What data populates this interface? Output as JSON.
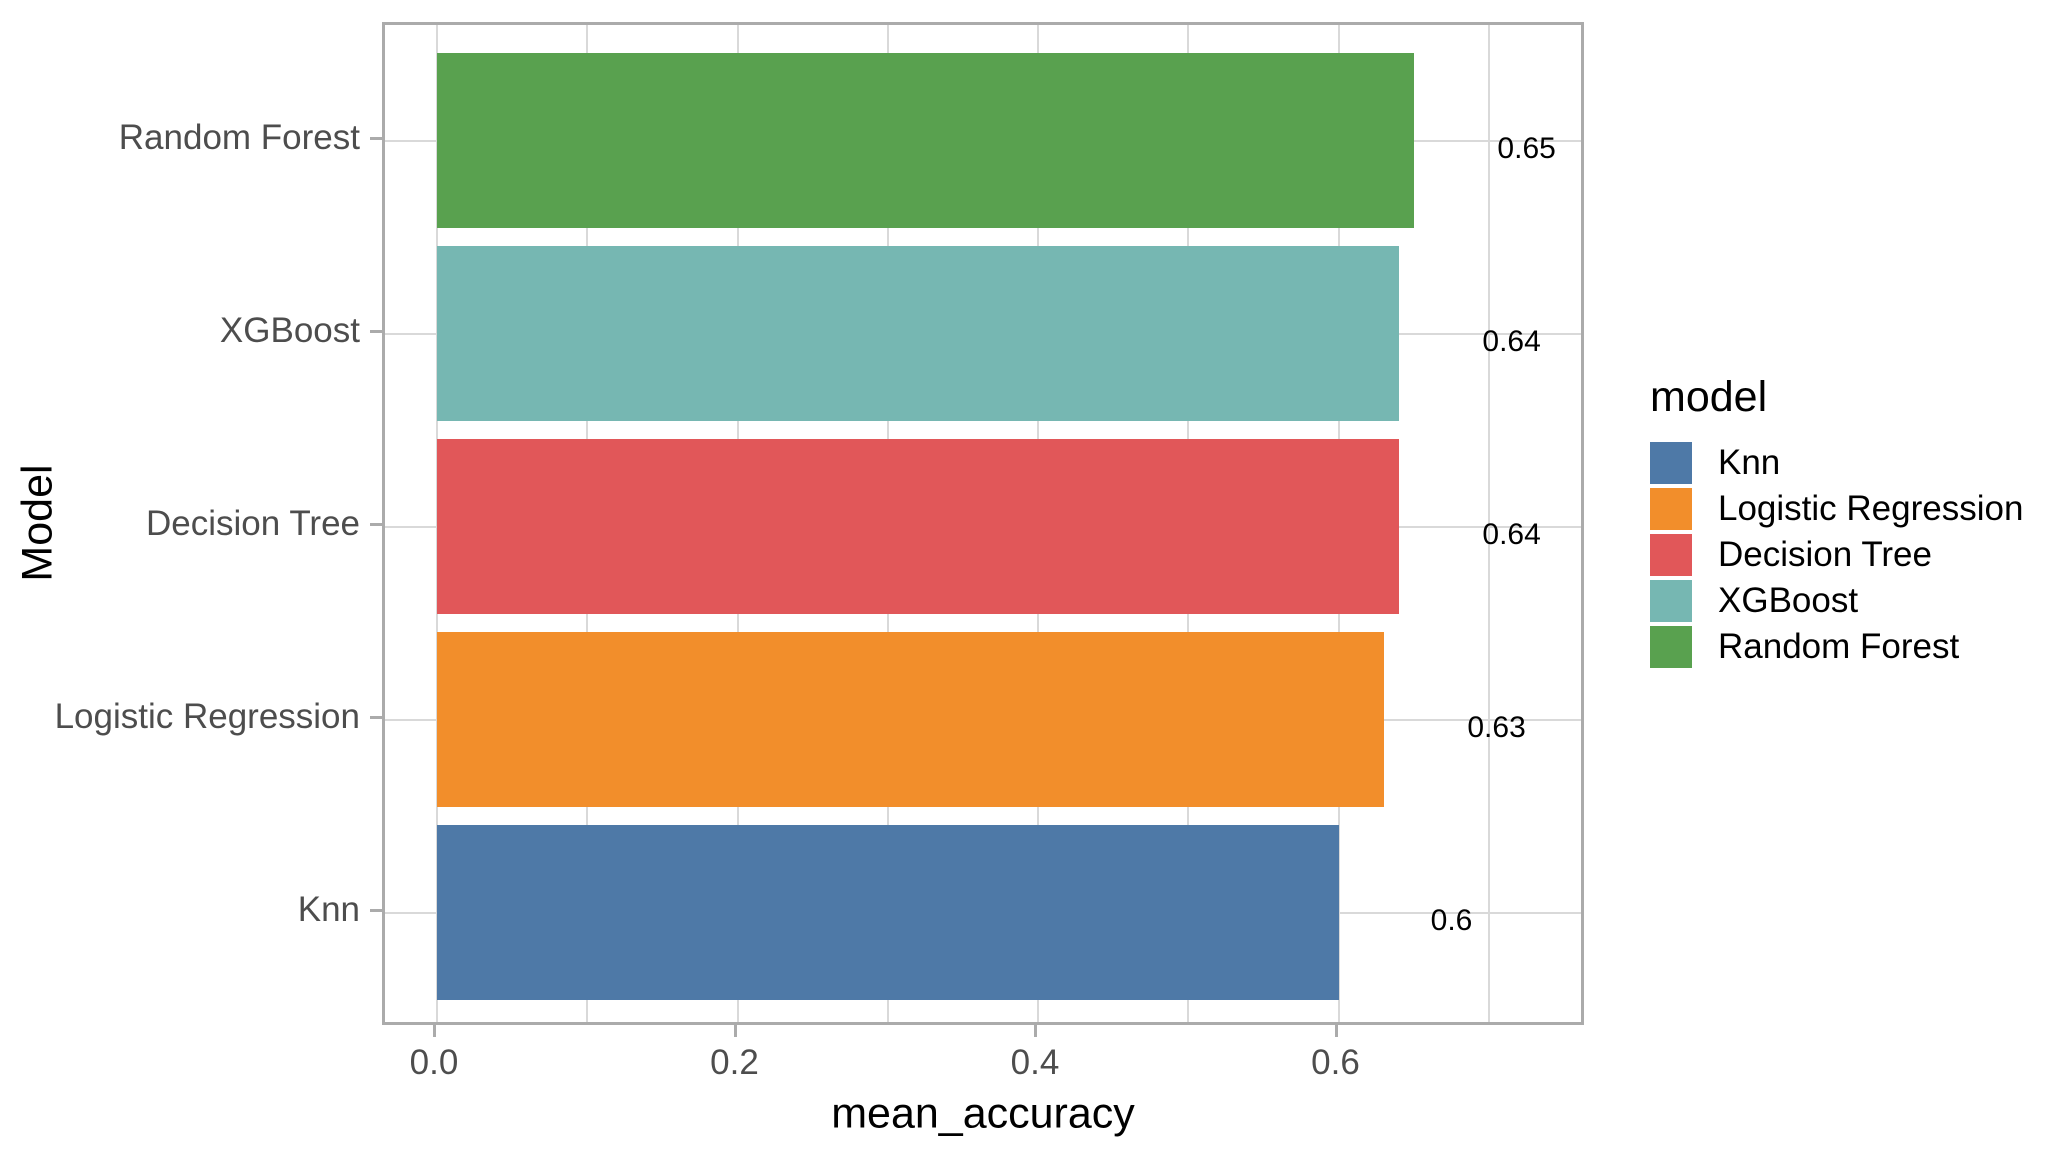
{
  "chart_data": {
    "type": "bar",
    "orientation": "horizontal",
    "title": "",
    "xlabel": "mean_accuracy",
    "ylabel": "Model",
    "categories": [
      "Random Forest",
      "XGBoost",
      "Decision Tree",
      "Logistic Regression",
      "Knn"
    ],
    "values": [
      0.65,
      0.64,
      0.64,
      0.63,
      0.6
    ],
    "value_labels": [
      "0.65",
      "0.64",
      "0.64",
      "0.63",
      "0.6"
    ],
    "bar_colors": [
      "#59a14f",
      "#76b7b2",
      "#e15759",
      "#f28e2b",
      "#4e79a7"
    ],
    "x_ticks": {
      "values": [
        0,
        0.2,
        0.4,
        0.6
      ],
      "labels": [
        "0.0",
        "0.2",
        "0.4",
        "0.6"
      ]
    },
    "x_minor_ticks": [
      0.1,
      0.3,
      0.5,
      0.7
    ],
    "xlim": [
      -0.0346,
      0.7654
    ],
    "grid": true,
    "legend": {
      "position": "right",
      "title": "model",
      "entries": [
        {
          "label": "Knn",
          "color": "#4e79a7"
        },
        {
          "label": "Logistic Regression",
          "color": "#f28e2b"
        },
        {
          "label": "Decision Tree",
          "color": "#e15759"
        },
        {
          "label": "XGBoost",
          "color": "#76b7b2"
        },
        {
          "label": "Random Forest",
          "color": "#59a14f"
        }
      ]
    }
  },
  "style": {
    "grid_color": "#d9d9d9",
    "panel_border_color": "#ababab",
    "tick_color": "#ababab",
    "axis_text_color": "#4d4d4d",
    "title_color": "#000000",
    "background_color": "#ffffff"
  }
}
